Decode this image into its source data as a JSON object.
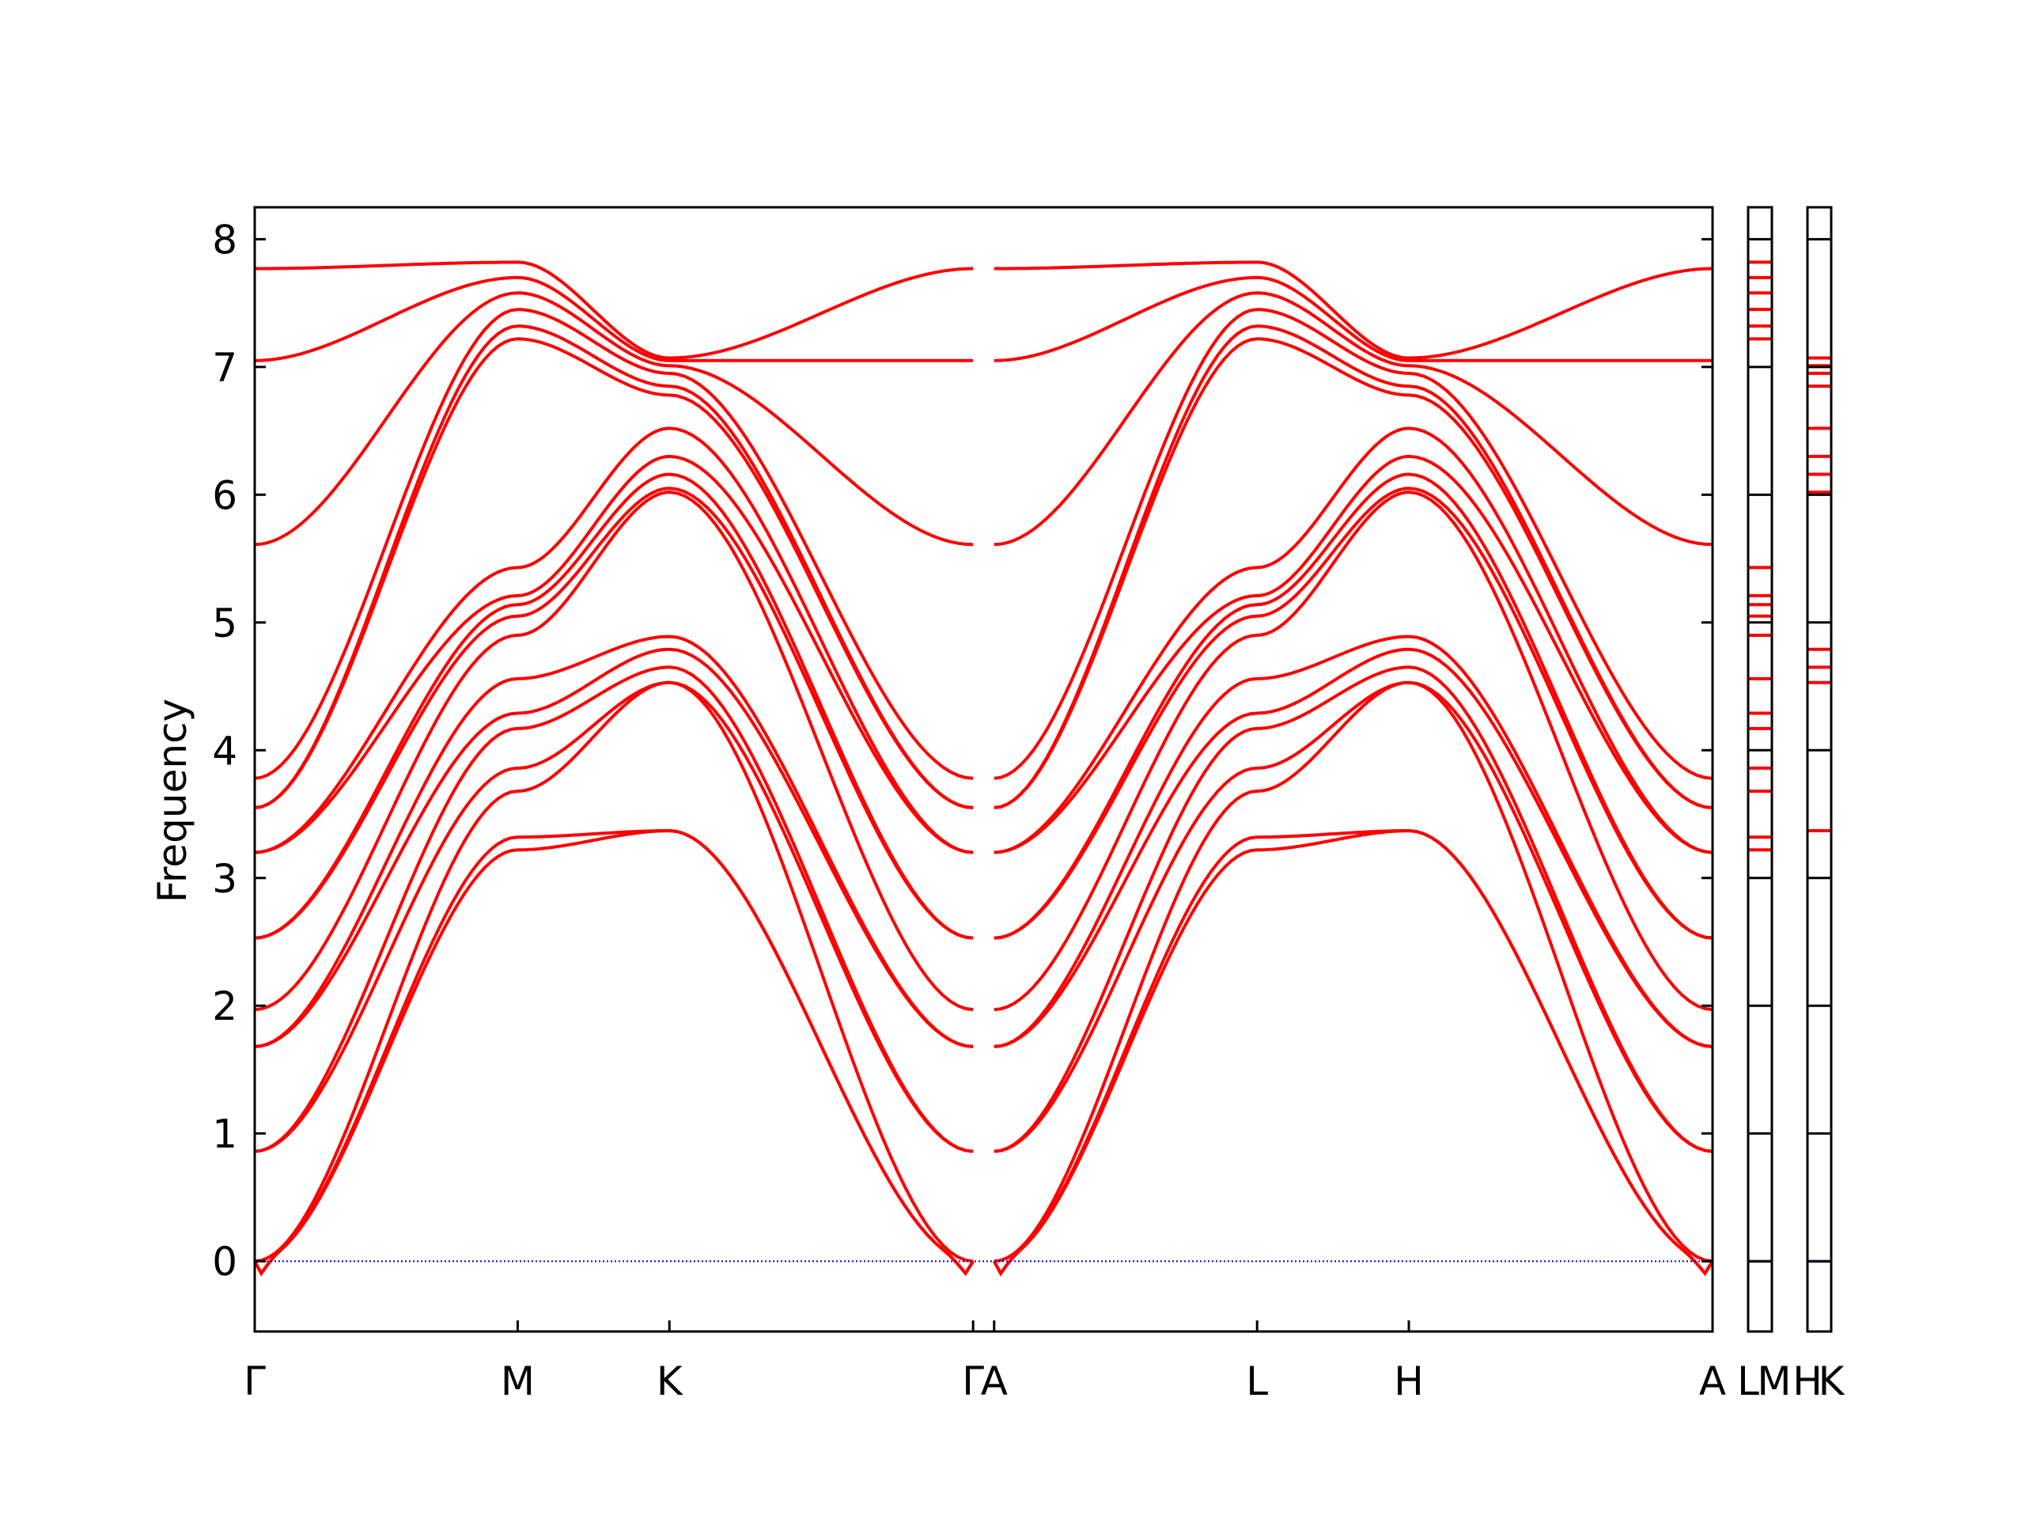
{
  "chart_data": {
    "type": "line",
    "title": "",
    "ylabel": "Frequency",
    "xlabel": "",
    "ylim": [
      -0.55,
      8.25
    ],
    "yticks": [
      0,
      1,
      2,
      3,
      4,
      5,
      6,
      7,
      8
    ],
    "yticklabels": [
      "0",
      "1",
      "2",
      "3",
      "4",
      "5",
      "6",
      "7",
      "8"
    ],
    "line_color": "#ff0000",
    "zero_line_color": "#0000cc",
    "grid": false,
    "legend": "none",
    "xticks": [
      {
        "label": "Γ",
        "pos": 0
      },
      {
        "label": "M",
        "pos": 1
      },
      {
        "label": "K",
        "pos": 1.577
      },
      {
        "label": "Γ",
        "pos": 2.732
      },
      {
        "label": "A",
        "pos": 2.812
      },
      {
        "label": "L",
        "pos": 3.812
      },
      {
        "label": "H",
        "pos": 4.389
      },
      {
        "label": "A",
        "pos": 5.544
      }
    ],
    "xlim": [
      0,
      5.544
    ],
    "segment_labels": [
      "L",
      "M",
      "H",
      "K"
    ],
    "gamma_M_K_Gamma_bands": [
      {
        "name": "",
        "values": {
          "G": 0.0,
          "M": 3.22,
          "K": 3.37
        },
        "dip": -0.13
      },
      {
        "name": "",
        "values": {
          "G": 0.0,
          "M": 3.32,
          "K": 3.37
        },
        "dip": -0.13
      },
      {
        "name": "",
        "values": {
          "G": 0.0,
          "M": 3.68,
          "K": 4.53
        }
      },
      {
        "name": "",
        "values": {
          "G": 0.86,
          "M": 3.86,
          "K": 4.53
        }
      },
      {
        "name": "",
        "values": {
          "G": 0.86,
          "M": 4.17,
          "K": 4.65
        }
      },
      {
        "name": "",
        "values": {
          "G": 1.68,
          "M": 4.29,
          "K": 4.79
        }
      },
      {
        "name": "",
        "values": {
          "G": 1.68,
          "M": 4.56,
          "K": 4.89
        }
      },
      {
        "name": "",
        "values": {
          "G": 1.97,
          "M": 4.9,
          "K": 6.02
        }
      },
      {
        "name": "",
        "values": {
          "G": 2.53,
          "M": 5.05,
          "K": 6.05
        }
      },
      {
        "name": "",
        "values": {
          "G": 2.53,
          "M": 5.14,
          "K": 6.16
        }
      },
      {
        "name": "",
        "values": {
          "G": 3.2,
          "M": 5.21,
          "K": 6.3
        }
      },
      {
        "name": "",
        "values": {
          "G": 3.2,
          "M": 5.43,
          "K": 6.52
        }
      },
      {
        "name": "",
        "values": {
          "G": 3.55,
          "M": 7.22,
          "K": 6.78
        }
      },
      {
        "name": "",
        "values": {
          "G": 3.55,
          "M": 7.32,
          "K": 6.85
        }
      },
      {
        "name": "",
        "values": {
          "G": 3.78,
          "M": 7.45,
          "K": 6.95
        }
      },
      {
        "name": "",
        "values": {
          "G": 5.61,
          "M": 7.58,
          "K": 7.01
        }
      },
      {
        "name": "",
        "values": {
          "G": 7.05,
          "M": 7.7,
          "K": 7.05
        }
      },
      {
        "name": "",
        "values": {
          "G": 7.77,
          "M": 7.82,
          "K": 7.07
        }
      }
    ],
    "L_M_markers": [
      3.22,
      3.32,
      3.68,
      3.86,
      4.17,
      4.29,
      4.56,
      4.9,
      5.05,
      5.14,
      5.21,
      5.43,
      7.22,
      7.32,
      7.45,
      7.58,
      7.7,
      7.82
    ],
    "H_K_markers": [
      3.37,
      4.53,
      4.65,
      4.79,
      6.02,
      6.16,
      6.3,
      6.52,
      6.85,
      6.95,
      7.01,
      7.07
    ]
  }
}
